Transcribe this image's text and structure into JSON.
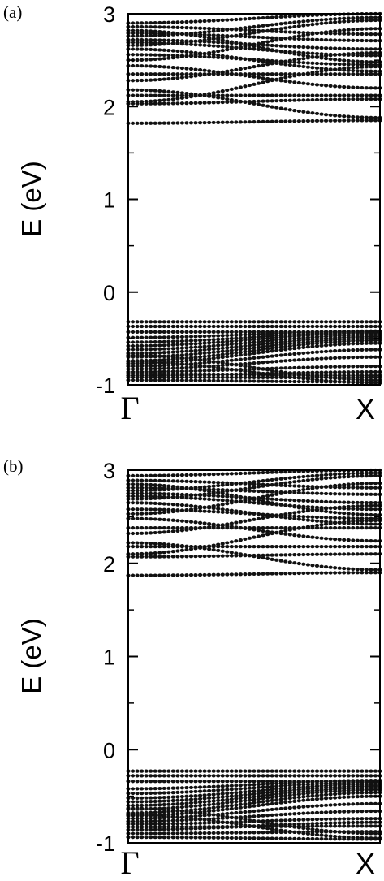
{
  "chart_data": [
    {
      "type": "scatter",
      "panel_label": "(a)",
      "ylabel": "E (eV)",
      "ylim": [
        -1,
        3
      ],
      "yticks": [
        "-1",
        "0",
        "1",
        "2",
        "3"
      ],
      "xticks": [
        "Γ",
        "X"
      ],
      "x_range": [
        0,
        1
      ],
      "bands": [
        {
          "gamma": 1.82,
          "x": 1.85,
          "shape": "linear"
        },
        {
          "gamma": 2.03,
          "x": 2.08,
          "shape": "linear"
        },
        {
          "gamma": 2.05,
          "x": 2.43,
          "shape": "linear"
        },
        {
          "gamma": 2.12,
          "x": 2.12,
          "shape": "linear"
        },
        {
          "gamma": 2.18,
          "x": 1.88,
          "shape": "linear"
        },
        {
          "gamma": 2.28,
          "x": 2.58,
          "shape": "linear"
        },
        {
          "gamma": 2.35,
          "x": 2.35,
          "shape": "linear"
        },
        {
          "gamma": 2.44,
          "x": 2.2,
          "shape": "linear"
        },
        {
          "gamma": 2.5,
          "x": 2.84,
          "shape": "linear"
        },
        {
          "gamma": 2.56,
          "x": 2.45,
          "shape": "linear"
        },
        {
          "gamma": 2.62,
          "x": 2.38,
          "shape": "linear"
        },
        {
          "gamma": 2.66,
          "x": 2.93,
          "shape": "linear"
        },
        {
          "gamma": 2.69,
          "x": 2.55,
          "shape": "linear"
        },
        {
          "gamma": 2.72,
          "x": 2.62,
          "shape": "linear"
        },
        {
          "gamma": 2.76,
          "x": 2.96,
          "shape": "linear"
        },
        {
          "gamma": 2.79,
          "x": 2.71,
          "shape": "linear"
        },
        {
          "gamma": 2.82,
          "x": 2.48,
          "shape": "linear"
        },
        {
          "gamma": 2.86,
          "x": 2.78,
          "shape": "linear"
        },
        {
          "gamma": 2.9,
          "x": 3.0,
          "shape": "linear"
        },
        {
          "gamma": -0.32,
          "x": -0.32,
          "shape": "flat"
        },
        {
          "gamma": -0.37,
          "x": -0.37,
          "shape": "flat"
        },
        {
          "gamma": -0.43,
          "x": -0.43,
          "shape": "flat"
        },
        {
          "gamma": -0.49,
          "x": -0.42,
          "shape": "linear"
        },
        {
          "gamma": -0.54,
          "x": -0.43,
          "shape": "linear"
        },
        {
          "gamma": -0.58,
          "x": -0.44,
          "shape": "linear"
        },
        {
          "gamma": -0.62,
          "x": -0.46,
          "shape": "linear"
        },
        {
          "gamma": -0.66,
          "x": -0.48,
          "shape": "linear"
        },
        {
          "gamma": -0.7,
          "x": -0.5,
          "shape": "linear"
        },
        {
          "gamma": -0.74,
          "x": -0.52,
          "shape": "linear"
        },
        {
          "gamma": -0.77,
          "x": -0.55,
          "shape": "linear"
        },
        {
          "gamma": -0.8,
          "x": -0.62,
          "shape": "linear"
        },
        {
          "gamma": -0.83,
          "x": -0.7,
          "shape": "linear"
        },
        {
          "gamma": -0.86,
          "x": -0.8,
          "shape": "linear"
        },
        {
          "gamma": -0.88,
          "x": -0.9,
          "shape": "linear"
        },
        {
          "gamma": -0.68,
          "x": -0.95,
          "shape": "linear"
        },
        {
          "gamma": -0.75,
          "x": -0.98,
          "shape": "linear"
        },
        {
          "gamma": -0.9,
          "x": -0.86,
          "shape": "linear"
        },
        {
          "gamma": -0.92,
          "x": -0.92,
          "shape": "linear"
        },
        {
          "gamma": -0.95,
          "x": -0.97,
          "shape": "linear"
        }
      ]
    },
    {
      "type": "scatter",
      "panel_label": "(b)",
      "ylabel": "E (eV)",
      "ylim": [
        -1,
        3
      ],
      "yticks": [
        "-1",
        "0",
        "1",
        "2",
        "3"
      ],
      "xticks": [
        "Γ",
        "X"
      ],
      "x_range": [
        0,
        1
      ],
      "bands": [
        {
          "gamma": 1.87,
          "x": 1.9,
          "shape": "linear"
        },
        {
          "gamma": 2.07,
          "x": 2.1,
          "shape": "linear"
        },
        {
          "gamma": 2.1,
          "x": 2.46,
          "shape": "linear"
        },
        {
          "gamma": 2.18,
          "x": 2.18,
          "shape": "linear"
        },
        {
          "gamma": 2.22,
          "x": 1.93,
          "shape": "linear"
        },
        {
          "gamma": 2.32,
          "x": 2.62,
          "shape": "linear"
        },
        {
          "gamma": 2.38,
          "x": 2.38,
          "shape": "linear"
        },
        {
          "gamma": 2.48,
          "x": 2.24,
          "shape": "linear"
        },
        {
          "gamma": 2.53,
          "x": 2.86,
          "shape": "linear"
        },
        {
          "gamma": 2.58,
          "x": 2.48,
          "shape": "linear"
        },
        {
          "gamma": 2.65,
          "x": 2.42,
          "shape": "linear"
        },
        {
          "gamma": 2.69,
          "x": 2.94,
          "shape": "linear"
        },
        {
          "gamma": 2.72,
          "x": 2.58,
          "shape": "linear"
        },
        {
          "gamma": 2.75,
          "x": 2.65,
          "shape": "linear"
        },
        {
          "gamma": 2.78,
          "x": 2.97,
          "shape": "linear"
        },
        {
          "gamma": 2.81,
          "x": 2.74,
          "shape": "linear"
        },
        {
          "gamma": 2.85,
          "x": 2.52,
          "shape": "linear"
        },
        {
          "gamma": 2.89,
          "x": 2.81,
          "shape": "linear"
        },
        {
          "gamma": 2.94,
          "x": 3.0,
          "shape": "linear"
        },
        {
          "gamma": -0.23,
          "x": -0.23,
          "shape": "flat"
        },
        {
          "gamma": -0.28,
          "x": -0.28,
          "shape": "flat"
        },
        {
          "gamma": -0.34,
          "x": -0.34,
          "shape": "flat"
        },
        {
          "gamma": -0.42,
          "x": -0.33,
          "shape": "linear"
        },
        {
          "gamma": -0.47,
          "x": -0.35,
          "shape": "linear"
        },
        {
          "gamma": -0.52,
          "x": -0.37,
          "shape": "linear"
        },
        {
          "gamma": -0.56,
          "x": -0.39,
          "shape": "linear"
        },
        {
          "gamma": -0.6,
          "x": -0.41,
          "shape": "linear"
        },
        {
          "gamma": -0.64,
          "x": -0.43,
          "shape": "linear"
        },
        {
          "gamma": -0.68,
          "x": -0.46,
          "shape": "linear"
        },
        {
          "gamma": -0.71,
          "x": -0.5,
          "shape": "linear"
        },
        {
          "gamma": -0.74,
          "x": -0.58,
          "shape": "linear"
        },
        {
          "gamma": -0.77,
          "x": -0.66,
          "shape": "linear"
        },
        {
          "gamma": -0.8,
          "x": -0.74,
          "shape": "linear"
        },
        {
          "gamma": -0.83,
          "x": -0.82,
          "shape": "linear"
        },
        {
          "gamma": -0.63,
          "x": -0.9,
          "shape": "linear"
        },
        {
          "gamma": -0.7,
          "x": -0.95,
          "shape": "linear"
        },
        {
          "gamma": -0.86,
          "x": -0.78,
          "shape": "linear"
        },
        {
          "gamma": -0.9,
          "x": -0.88,
          "shape": "linear"
        },
        {
          "gamma": -0.94,
          "x": -0.96,
          "shape": "linear"
        }
      ]
    }
  ]
}
